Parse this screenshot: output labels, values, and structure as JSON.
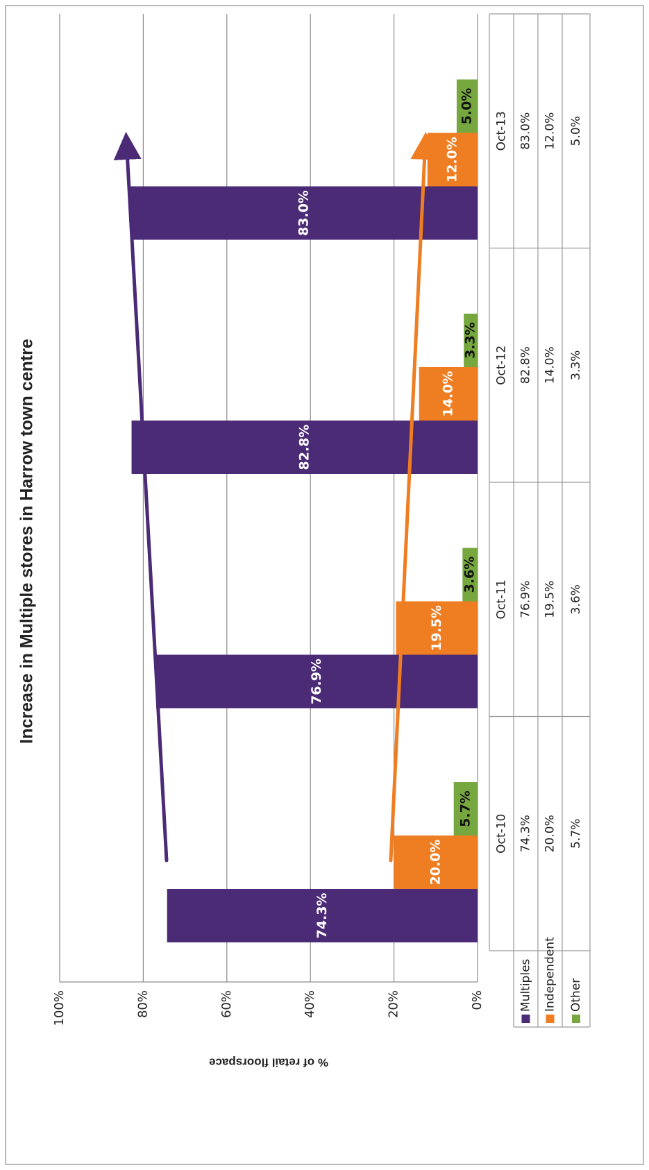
{
  "chart_data": {
    "type": "bar",
    "title": "Increase in Multiple stores in Harrow town centre",
    "y_label": "% of retail floorspace",
    "categories": [
      "Oct-10",
      "Oct-11",
      "Oct-12",
      "Oct-13"
    ],
    "series": [
      {
        "name": "Multiples",
        "color": "#4b2a76",
        "values": [
          74.3,
          76.9,
          82.8,
          83.0
        ],
        "value_labels": [
          "74.3%",
          "76.9%",
          "82.8%",
          "83.0%"
        ]
      },
      {
        "name": "Independent",
        "color": "#ef7d22",
        "values": [
          20.0,
          19.5,
          14.0,
          12.0
        ],
        "value_labels": [
          "20.0%",
          "19.5%",
          "14.0%",
          "12.0%"
        ]
      },
      {
        "name": "Other",
        "color": "#77a83f",
        "values": [
          5.7,
          3.6,
          3.3,
          5.0
        ],
        "value_labels": [
          "5.7%",
          "3.6%",
          "3.3%",
          "5.0%"
        ]
      }
    ],
    "ylim": [
      0,
      100
    ],
    "yticks": [
      {
        "value": 0,
        "label": "0%"
      },
      {
        "value": 20,
        "label": "20%"
      },
      {
        "value": 40,
        "label": "40%"
      },
      {
        "value": 60,
        "label": "60%"
      },
      {
        "value": 80,
        "label": "80%"
      },
      {
        "value": 100,
        "label": "100%"
      }
    ],
    "grid": true
  }
}
